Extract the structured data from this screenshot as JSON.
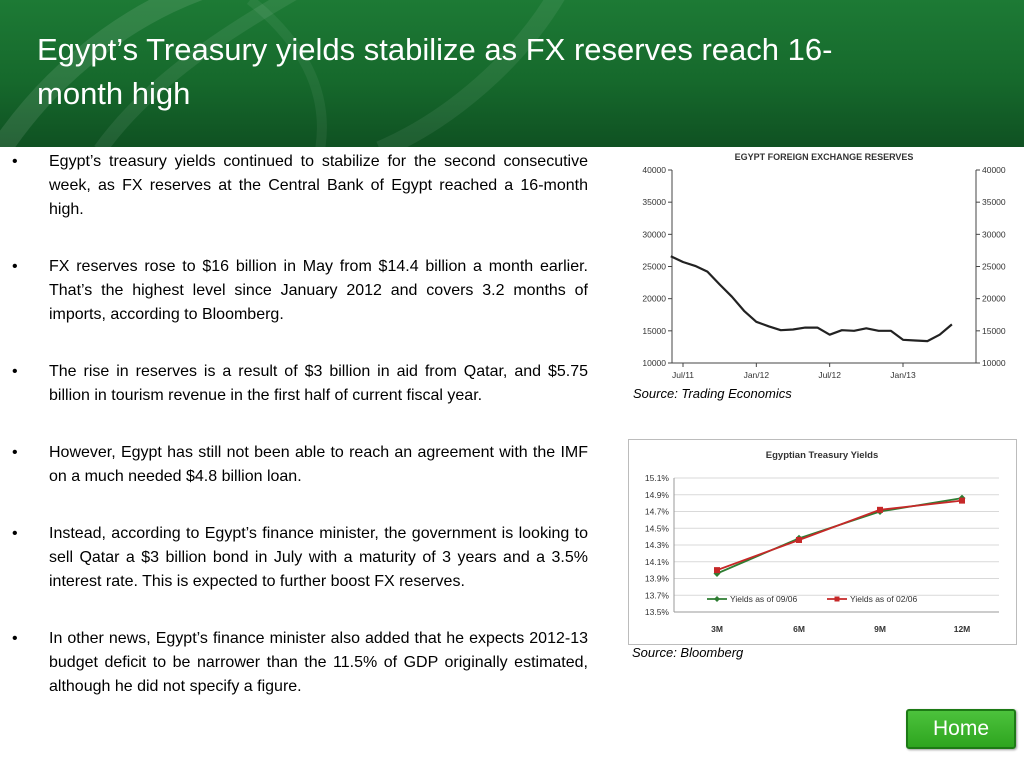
{
  "slide": {
    "title": "Egypt’s Treasury yields stabilize as FX reserves reach 16-month high",
    "bullets": [
      "Egypt’s treasury yields continued to stabilize for the second consecutive week, as FX reserves at the Central Bank of Egypt reached a 16-month high.",
      "FX reserves rose to $16 billion in May from $14.4 billion a month earlier. That’s the highest level since January 2012 and covers 3.2 months of imports, according to Bloomberg.",
      "The rise in reserves is a result of $3 billion in aid from Qatar, and $5.75 billion in tourism revenue in the first half of current fiscal year.",
      "However, Egypt has still not been able to reach an agreement with the IMF on a much needed $4.8 billion loan.",
      "Instead, according to Egypt’s finance minister, the government is looking to sell Qatar a $3 billion bond in July with a maturity of 3 years and a 3.5% interest rate. This is expected to further boost FX reserves.",
      "In other news, Egypt’s finance minister also added that he expects 2012-13 budget deficit to be narrower than the 11.5% of GDP originally estimated, although he did not specify a figure."
    ],
    "bullet_symbol": "•",
    "source1": "Source: Trading Economics",
    "source2": "Source: Bloomberg",
    "home_label": "Home",
    "colors": {
      "header": "#16692c",
      "home": "#3bb52c",
      "series_green": "#2e7d32",
      "series_red": "#c62828"
    }
  },
  "chart_data": [
    {
      "type": "line",
      "title": "EGYPT FOREIGN EXCHANGE RESERVES",
      "x_ticks": [
        "Jul/11",
        "Jan/12",
        "Jul/12",
        "Jan/13"
      ],
      "y_ticks": [
        10000,
        15000,
        20000,
        25000,
        30000,
        35000,
        40000
      ],
      "ylim": [
        10000,
        40000
      ],
      "grid": false,
      "series": [
        {
          "x": [
            "2011-06",
            "2011-07",
            "2011-08",
            "2011-09",
            "2011-10",
            "2011-11",
            "2011-12",
            "2012-01",
            "2012-02",
            "2012-03",
            "2012-04",
            "2012-05",
            "2012-06",
            "2012-07",
            "2012-08",
            "2012-09",
            "2012-10",
            "2012-11",
            "2012-12",
            "2013-01",
            "2013-02",
            "2013-03",
            "2013-04",
            "2013-05"
          ],
          "values": [
            26600,
            25700,
            25100,
            24200,
            22200,
            20300,
            18100,
            16400,
            15700,
            15100,
            15200,
            15500,
            15500,
            14400,
            15100,
            15000,
            15400,
            15000,
            15000,
            13600,
            13500,
            13400,
            14400,
            16000
          ]
        }
      ]
    },
    {
      "type": "line",
      "title": "Egyptian Treasury Yields",
      "categories": [
        "3M",
        "6M",
        "9M",
        "12M"
      ],
      "y_ticks": [
        "15.1%",
        "14.9%",
        "14.7%",
        "14.5%",
        "14.3%",
        "14.1%",
        "13.9%",
        "13.7%",
        "13.5%"
      ],
      "ylim": [
        13.5,
        15.1
      ],
      "grid": true,
      "legend": "bottom-left",
      "series": [
        {
          "name": "Yields as of 09/06",
          "values": [
            13.96,
            14.38,
            14.7,
            14.86
          ]
        },
        {
          "name": "Yields as of 02/06",
          "values": [
            14.0,
            14.36,
            14.72,
            14.83
          ]
        }
      ]
    }
  ]
}
